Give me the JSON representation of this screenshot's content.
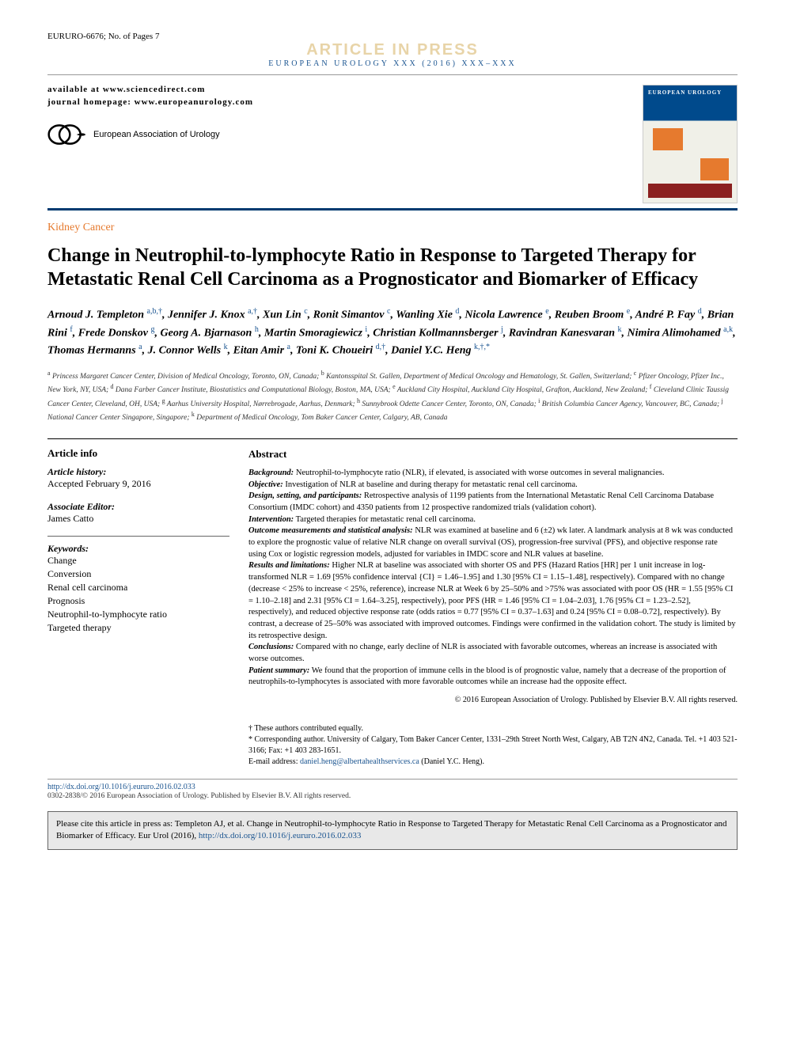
{
  "header": {
    "article_id": "EURURO-6676; No. of Pages 7",
    "in_press_label": "ARTICLE IN PRESS",
    "journal_line": "EUROPEAN UROLOGY XXX (2016) XXX–XXX",
    "available_at": "available at www.sciencedirect.com",
    "homepage": "journal homepage: www.europeanurology.com",
    "eau_name": "European Association of Urology",
    "cover_title": "EUROPEAN UROLOGY"
  },
  "category": "Kidney Cancer",
  "title": "Change in Neutrophil-to-lymphocyte Ratio in Response to Targeted Therapy for Metastatic Renal Cell Carcinoma as a Prognosticator and Biomarker of Efficacy",
  "authors_html": "Arnoud J. Templeton <sup>a,b,†</sup>, Jennifer J. Knox <sup>a,†</sup>, Xun Lin <sup>c</sup>, Ronit Simantov <sup>c</sup>, Wanling Xie <sup>d</sup>, Nicola Lawrence <sup>e</sup>, Reuben Broom <sup>e</sup>, André P. Fay <sup>d</sup>, Brian Rini <sup>f</sup>, Frede Donskov <sup>g</sup>, Georg A. Bjarnason <sup>h</sup>, Martin Smoragiewicz <sup>i</sup>, Christian Kollmannsberger <sup>j</sup>, Ravindran Kanesvaran <sup>k</sup>, Nimira Alimohamed <sup>a,k</sup>, Thomas Hermanns <sup>a</sup>, J. Connor Wells <sup>k</sup>, Eitan Amir <sup>a</sup>, Toni K. Choueiri <sup>d,†</sup>, Daniel Y.C. Heng <sup>k,†,*</sup>",
  "affiliations_html": "<sup>a</sup> Princess Margaret Cancer Center, Division of Medical Oncology, Toronto, ON, Canada; <sup>b</sup> Kantonsspital St. Gallen, Department of Medical Oncology and Hematology, St. Gallen, Switzerland; <sup>c</sup> Pfizer Oncology, Pfizer Inc., New York, NY, USA; <sup>d</sup> Dana Farber Cancer Institute, Biostatistics and Computational Biology, Boston, MA, USA; <sup>e</sup> Auckland City Hospital, Auckland City Hospital, Grafton, Auckland, New Zealand; <sup>f</sup> Cleveland Clinic Taussig Cancer Center, Cleveland, OH, USA; <sup>g</sup> Aarhus University Hospital, Nørrebrogade, Aarhus, Denmark; <sup>h</sup> Sunnybrook Odette Cancer Center, Toronto, ON, Canada; <sup>i</sup> British Columbia Cancer Agency, Vancouver, BC, Canada; <sup>j</sup> National Cancer Center Singapore, Singapore; <sup>k</sup> Department of Medical Oncology, Tom Baker Cancer Center, Calgary, AB, Canada",
  "article_info": {
    "section_label": "Article info",
    "history_label": "Article history:",
    "history_value": "Accepted February 9, 2016",
    "assoc_editor_label": "Associate Editor:",
    "assoc_editor_value": "James Catto",
    "keywords_label": "Keywords:",
    "keywords": [
      "Change",
      "Conversion",
      "Renal cell carcinoma",
      "Prognosis",
      "Neutrophil-to-lymphocyte ratio",
      "Targeted therapy"
    ]
  },
  "abstract": {
    "section_label": "Abstract",
    "background_label": "Background:",
    "background": "Neutrophil-to-lymphocyte ratio (NLR), if elevated, is associated with worse outcomes in several malignancies.",
    "objective_label": "Objective:",
    "objective": "Investigation of NLR at baseline and during therapy for metastatic renal cell carcinoma.",
    "design_label": "Design, setting, and participants:",
    "design": "Retrospective analysis of 1199 patients from the International Metastatic Renal Cell Carcinoma Database Consortium (IMDC cohort) and 4350 patients from 12 prospective randomized trials (validation cohort).",
    "intervention_label": "Intervention:",
    "intervention": "Targeted therapies for metastatic renal cell carcinoma.",
    "outcome_label": "Outcome measurements and statistical analysis:",
    "outcome": "NLR was examined at baseline and 6 (±2) wk later. A landmark analysis at 8 wk was conducted to explore the prognostic value of relative NLR change on overall survival (OS), progression-free survival (PFS), and objective response rate using Cox or logistic regression models, adjusted for variables in IMDC score and NLR values at baseline.",
    "results_label": "Results and limitations:",
    "results": "Higher NLR at baseline was associated with shorter OS and PFS (Hazard Ratios [HR] per 1 unit increase in log-transformed NLR = 1.69 [95% confidence interval {CI} = 1.46–1.95] and 1.30 [95% CI = 1.15–1.48], respectively). Compared with no change (decrease < 25% to increase < 25%, reference), increase NLR at Week 6 by 25–50% and >75% was associated with poor OS (HR = 1.55 [95% CI = 1.10–2.18] and 2.31 [95% CI = 1.64–3.25], respectively), poor PFS (HR = 1.46 [95% CI = 1.04–2.03], 1.76 [95% CI = 1.23–2.52], respectively), and reduced objective response rate (odds ratios = 0.77 [95% CI = 0.37–1.63] and 0.24 [95% CI = 0.08–0.72], respectively). By contrast, a decrease of 25–50% was associated with improved outcomes. Findings were confirmed in the validation cohort. The study is limited by its retrospective design.",
    "conclusions_label": "Conclusions:",
    "conclusions": "Compared with no change, early decline of NLR is associated with favorable outcomes, whereas an increase is associated with worse outcomes.",
    "patient_summary_label": "Patient summary:",
    "patient_summary": "We found that the proportion of immune cells in the blood is of prognostic value, namely that a decrease of the proportion of neutrophils-to-lymphocytes is associated with more favorable outcomes while an increase had the opposite effect.",
    "copyright": "© 2016 European Association of Urology. Published by Elsevier B.V. All rights reserved."
  },
  "footnotes": {
    "equal": "† These authors contributed equally.",
    "corresponding": "* Corresponding author. University of Calgary, Tom Baker Cancer Center, 1331–29th Street North West, Calgary, AB T2N 4N2, Canada. Tel. +1 403 521-3166; Fax: +1 403 283-1651.",
    "email_label": "E-mail address:",
    "email": "daniel.heng@albertahealthservices.ca",
    "email_name": "(Daniel Y.C. Heng)."
  },
  "doi": {
    "url": "http://dx.doi.org/10.1016/j.eururo.2016.02.033",
    "issn_line": "0302-2838/© 2016 European Association of Urology. Published by Elsevier B.V. All rights reserved."
  },
  "citebox": {
    "text": "Please cite this article in press as: Templeton AJ, et al. Change in Neutrophil-to-lymphocyte Ratio in Response to Targeted Therapy for Metastatic Renal Cell Carcinoma as a Prognosticator and Biomarker of Efficacy. Eur Urol (2016), ",
    "link": "http://dx.doi.org/10.1016/j.eururo.2016.02.033"
  },
  "colors": {
    "link": "#1a5490",
    "accent_orange": "#e67a2e",
    "inpress_sand": "#e8d4a8",
    "dark_blue": "#003a70"
  }
}
